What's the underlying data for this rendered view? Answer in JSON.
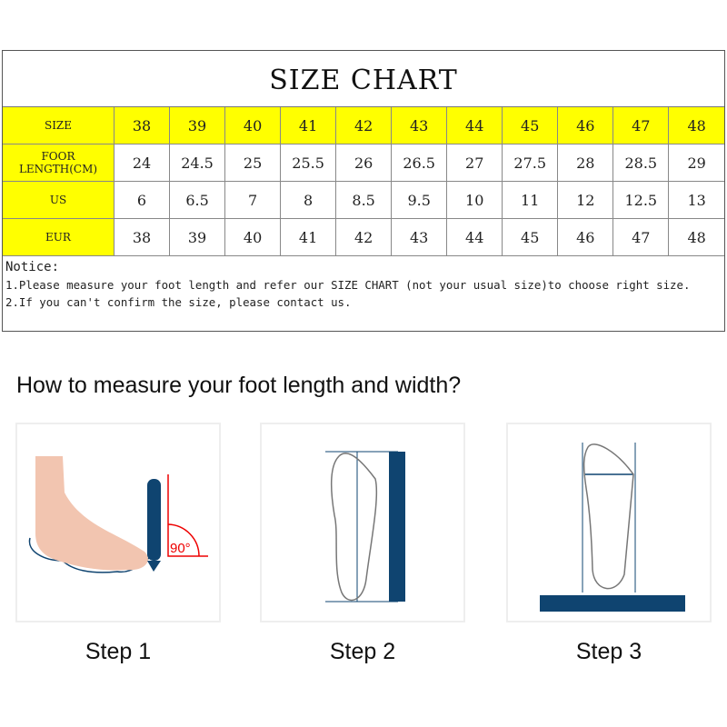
{
  "size_chart": {
    "title": "SIZE CHART",
    "rows": [
      {
        "label": "SIZE",
        "values": [
          "38",
          "39",
          "40",
          "41",
          "42",
          "43",
          "44",
          "45",
          "46",
          "47",
          "48"
        ]
      },
      {
        "label": "FOOR LENGTH(CM)",
        "values": [
          "24",
          "24.5",
          "25",
          "25.5",
          "26",
          "26.5",
          "27",
          "27.5",
          "28",
          "28.5",
          "29"
        ]
      },
      {
        "label": "US",
        "values": [
          "6",
          "6.5",
          "7",
          "8",
          "8.5",
          "9.5",
          "10",
          "11",
          "12",
          "12.5",
          "13"
        ]
      },
      {
        "label": "EUR",
        "values": [
          "38",
          "39",
          "40",
          "41",
          "42",
          "43",
          "44",
          "45",
          "46",
          "47",
          "48"
        ]
      }
    ],
    "notice_title": "Notice:",
    "notice_lines": [
      "1.Please measure your foot length and refer our SIZE CHART (not your usual size)to choose right size.",
      "2.If you can't confirm the size, please contact us."
    ],
    "header_color": "#ffff00"
  },
  "guide": {
    "heading": "How to measure your foot length and width?",
    "angle_label": "90°",
    "steps": [
      "Step 1",
      "Step 2",
      "Step 3"
    ],
    "accent_color": "#0f4470"
  }
}
